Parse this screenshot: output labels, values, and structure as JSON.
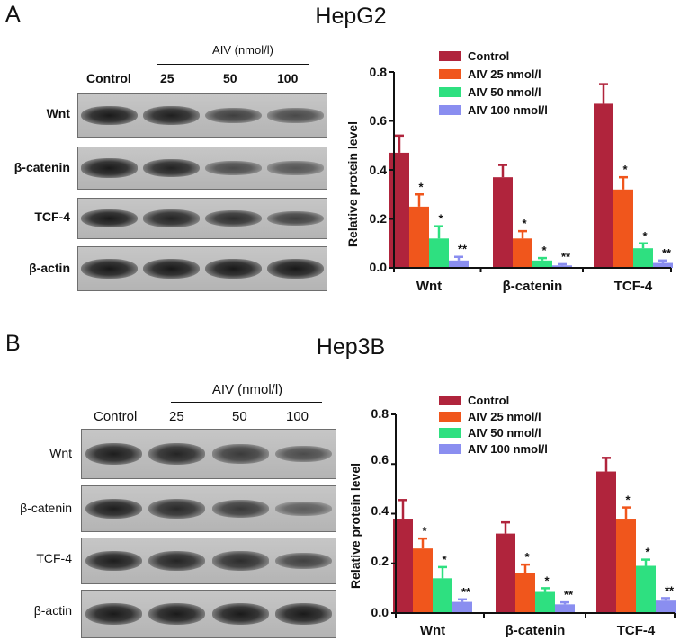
{
  "panels": [
    {
      "letter": "A",
      "title": "HepG2",
      "blot": {
        "aiv_label": "AIV (nmol/l)",
        "lanes": [
          "Control",
          "25",
          "50",
          "100"
        ],
        "rows": [
          {
            "label": "Wnt",
            "intensity": [
              0.95,
              0.9,
              0.62,
              0.52
            ]
          },
          {
            "label": "β-catenin",
            "intensity": [
              0.95,
              0.88,
              0.5,
              0.42
            ]
          },
          {
            "label": "TCF-4",
            "intensity": [
              0.95,
              0.86,
              0.78,
              0.62
            ]
          },
          {
            "label": "β-actin",
            "intensity": [
              0.97,
              0.97,
              0.97,
              0.97
            ]
          }
        ]
      }
    },
    {
      "letter": "B",
      "title": "Hep3B",
      "blot": {
        "aiv_label": "AIV (nmol/l)",
        "lanes": [
          "Control",
          "25",
          "50",
          "100"
        ],
        "rows": [
          {
            "label": "Wnt",
            "intensity": [
              0.92,
              0.86,
              0.66,
              0.5
            ]
          },
          {
            "label": "β-catenin",
            "intensity": [
              0.92,
              0.82,
              0.68,
              0.36
            ]
          },
          {
            "label": "TCF-4",
            "intensity": [
              0.92,
              0.86,
              0.78,
              0.6
            ]
          },
          {
            "label": "β-actin",
            "intensity": [
              0.95,
              0.95,
              0.95,
              0.95
            ]
          }
        ]
      }
    }
  ],
  "chart_data": [
    {
      "type": "bar",
      "ylabel": "Relative protein level",
      "ylim": [
        0,
        0.8
      ],
      "yticks": [
        "0.0",
        "0.2",
        "0.4",
        "0.6",
        "0.8"
      ],
      "categories": [
        "Wnt",
        "β-catenin",
        "TCF-4"
      ],
      "legend_position": "top-right",
      "series": [
        {
          "name": "Control",
          "color": "#b0243c",
          "values": [
            0.47,
            0.37,
            0.67
          ],
          "errors": [
            0.07,
            0.05,
            0.08
          ],
          "sig": [
            "",
            "",
            ""
          ]
        },
        {
          "name": "AIV 25 nmol/l",
          "color": "#f0561c",
          "values": [
            0.25,
            0.12,
            0.32
          ],
          "errors": [
            0.05,
            0.03,
            0.05
          ],
          "sig": [
            "*",
            "*",
            "*"
          ]
        },
        {
          "name": "AIV 50 nmol/l",
          "color": "#2ee080",
          "values": [
            0.12,
            0.03,
            0.08
          ],
          "errors": [
            0.05,
            0.01,
            0.02
          ],
          "sig": [
            "*",
            "*",
            "*"
          ]
        },
        {
          "name": "AIV 100 nmol/l",
          "color": "#8a8ef0",
          "values": [
            0.03,
            0.01,
            0.02
          ],
          "errors": [
            0.015,
            0.005,
            0.01
          ],
          "sig": [
            "**",
            "**",
            "**"
          ]
        }
      ]
    },
    {
      "type": "bar",
      "ylabel": "Relative protein level",
      "ylim": [
        0,
        0.8
      ],
      "yticks": [
        "0.0",
        "0.2",
        "0.4",
        "0.6",
        "0.8"
      ],
      "categories": [
        "Wnt",
        "β-catenin",
        "TCF-4"
      ],
      "legend_position": "top-right",
      "series": [
        {
          "name": "Control",
          "color": "#b0243c",
          "values": [
            0.38,
            0.32,
            0.57
          ],
          "errors": [
            0.075,
            0.045,
            0.055
          ],
          "sig": [
            "",
            "",
            ""
          ]
        },
        {
          "name": "AIV 25 nmol/l",
          "color": "#f0561c",
          "values": [
            0.26,
            0.16,
            0.38
          ],
          "errors": [
            0.04,
            0.035,
            0.045
          ],
          "sig": [
            "*",
            "*",
            "*"
          ]
        },
        {
          "name": "AIV 50 nmol/l",
          "color": "#2ee080",
          "values": [
            0.14,
            0.085,
            0.19
          ],
          "errors": [
            0.045,
            0.015,
            0.025
          ],
          "sig": [
            "*",
            "*",
            "*"
          ]
        },
        {
          "name": "AIV 100 nmol/l",
          "color": "#8a8ef0",
          "values": [
            0.045,
            0.035,
            0.05
          ],
          "errors": [
            0.01,
            0.008,
            0.01
          ],
          "sig": [
            "**",
            "**",
            "**"
          ]
        }
      ]
    }
  ]
}
